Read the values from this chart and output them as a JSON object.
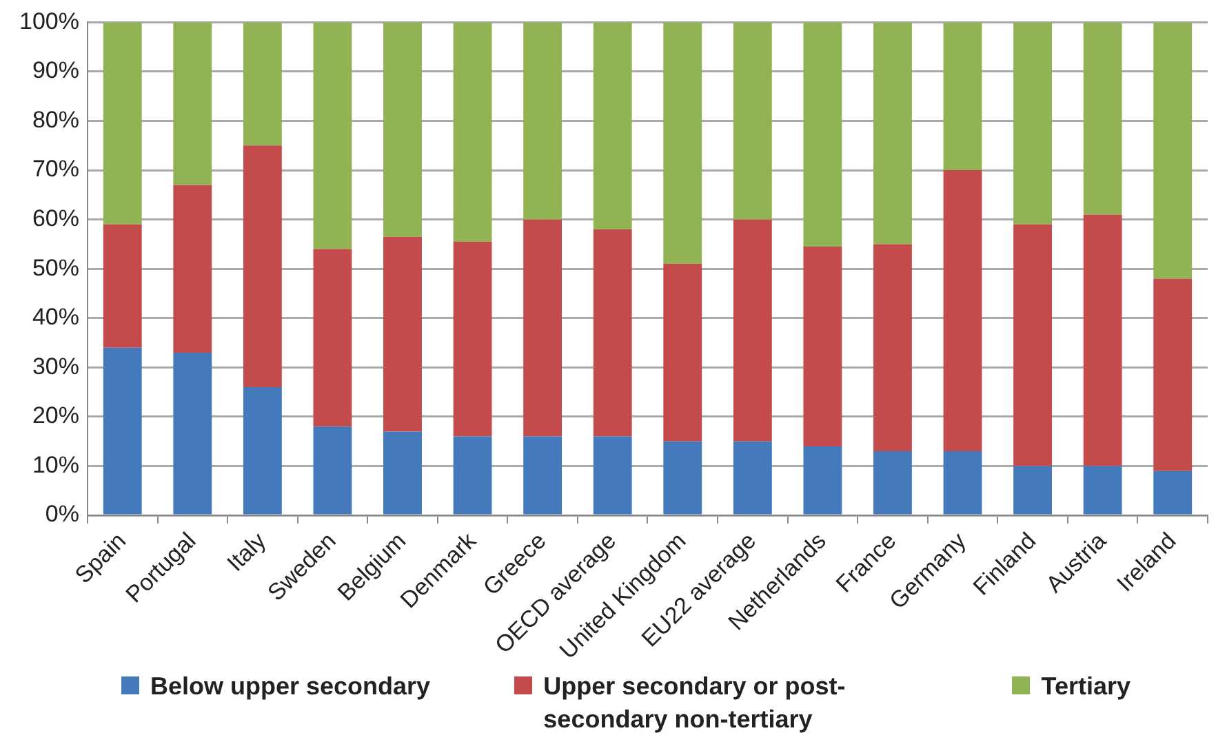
{
  "chart_data": {
    "type": "bar",
    "stacked": true,
    "grid": "y",
    "legend": "bottom",
    "categories": [
      "Spain",
      "Portugal",
      "Italy",
      "Sweden",
      "Belgium",
      "Denmark",
      "Greece",
      "OECD average",
      "United Kingdom",
      "EU22 average",
      "Netherlands",
      "France",
      "Germany",
      "Finland",
      "Austria",
      "Ireland"
    ],
    "series": [
      {
        "name": "Below upper secondary",
        "color": "#4479bb",
        "values": [
          34,
          33,
          26,
          18,
          17,
          16,
          16,
          16,
          15,
          15,
          14,
          13,
          13,
          10,
          10,
          9
        ]
      },
      {
        "name": "Upper secondary or post-secondary non-tertiary",
        "color": "#c44b4b",
        "values": [
          25,
          34,
          49,
          36,
          39.5,
          39.5,
          44,
          42,
          36,
          45,
          40.5,
          42,
          57,
          49,
          51,
          39
        ]
      },
      {
        "name": "Tertiary",
        "color": "#92b353",
        "values": [
          41,
          33,
          25,
          46,
          43.5,
          44.5,
          40,
          42,
          49,
          40,
          45.5,
          45,
          30,
          41,
          39,
          52
        ]
      }
    ],
    "ylim": [
      0,
      100
    ],
    "yticks": [
      {
        "value": 0,
        "label": "0%"
      },
      {
        "value": 10,
        "label": "10%"
      },
      {
        "value": 20,
        "label": "20%"
      },
      {
        "value": 30,
        "label": "30%"
      },
      {
        "value": 40,
        "label": "40%"
      },
      {
        "value": 50,
        "label": "50%"
      },
      {
        "value": 60,
        "label": "60%"
      },
      {
        "value": 70,
        "label": "70%"
      },
      {
        "value": 80,
        "label": "80%"
      },
      {
        "value": 90,
        "label": "90%"
      },
      {
        "value": 100,
        "label": "100%"
      }
    ]
  }
}
